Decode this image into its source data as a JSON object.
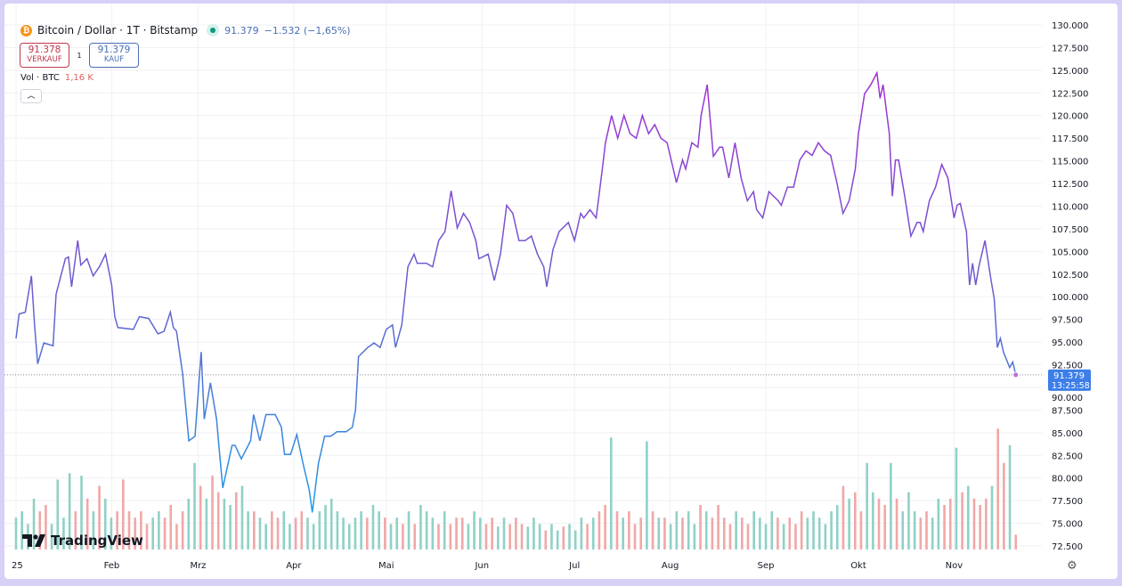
{
  "header": {
    "symbol_title": "Bitcoin / Dollar · 1T · Bitstamp",
    "icon": "bitcoin-icon",
    "market_status": "open",
    "last": "91.379",
    "change": "−1.532 (−1,65%)",
    "sell_price": "91.378",
    "sell_label": "VERKAUF",
    "spread": "1",
    "buy_price": "91.379",
    "buy_label": "KAUF",
    "vol_label": "Vol · BTC",
    "vol_value": "1,16 K",
    "collapse_icon": "chevron-up-icon"
  },
  "logo_text": "TradingView",
  "price_tag": {
    "price": "91.379",
    "countdown": "13:25:58"
  },
  "colors": {
    "line_low": "#1e9be6",
    "line_high": "#a22fd6",
    "vol_up": "#8fd1c6",
    "vol_down": "#f1a7a7",
    "price_tag": "#3d7ee8"
  },
  "chart_data": {
    "type": "line",
    "title": "Bitcoin / Dollar · 1T · Bitstamp",
    "ylim": [
      72500,
      130000
    ],
    "y_ticks": [
      "72.500",
      "75.000",
      "77.500",
      "80.000",
      "82.500",
      "85.000",
      "87.500",
      "90.000",
      "92.500",
      "95.000",
      "97.500",
      "100.000",
      "102.500",
      "105.000",
      "107.500",
      "110.000",
      "112.500",
      "115.000",
      "117.500",
      "120.000",
      "122.500",
      "125.000",
      "127.500",
      "130.000"
    ],
    "x_ticks": [
      {
        "label": "25",
        "date": "2025-01-01"
      },
      {
        "label": "Feb",
        "date": "2025-02-01"
      },
      {
        "label": "Mrz",
        "date": "2025-03-01"
      },
      {
        "label": "Apr",
        "date": "2025-04-01"
      },
      {
        "label": "Mai",
        "date": "2025-05-01"
      },
      {
        "label": "Jun",
        "date": "2025-06-01"
      },
      {
        "label": "Jul",
        "date": "2025-07-01"
      },
      {
        "label": "Aug",
        "date": "2025-08-01"
      },
      {
        "label": "Sep",
        "date": "2025-09-01"
      },
      {
        "label": "Okt",
        "date": "2025-10-01"
      },
      {
        "label": "Nov",
        "date": "2025-11-01"
      }
    ],
    "xlim": [
      "2025-01-01",
      "2025-11-28"
    ],
    "grid": true,
    "price": [
      [
        "2025-01-01",
        95400
      ],
      [
        "2025-01-02",
        98100
      ],
      [
        "2025-01-04",
        98300
      ],
      [
        "2025-01-06",
        102300
      ],
      [
        "2025-01-07",
        96900
      ],
      [
        "2025-01-08",
        92600
      ],
      [
        "2025-01-10",
        94900
      ],
      [
        "2025-01-13",
        94600
      ],
      [
        "2025-01-14",
        100300
      ],
      [
        "2025-01-17",
        104200
      ],
      [
        "2025-01-18",
        104400
      ],
      [
        "2025-01-19",
        101100
      ],
      [
        "2025-01-21",
        106200
      ],
      [
        "2025-01-22",
        103500
      ],
      [
        "2025-01-24",
        104200
      ],
      [
        "2025-01-26",
        102300
      ],
      [
        "2025-01-28",
        103300
      ],
      [
        "2025-01-30",
        104700
      ],
      [
        "2025-02-01",
        101300
      ],
      [
        "2025-02-02",
        97800
      ],
      [
        "2025-02-03",
        96600
      ],
      [
        "2025-02-08",
        96400
      ],
      [
        "2025-02-10",
        97800
      ],
      [
        "2025-02-13",
        97600
      ],
      [
        "2025-02-16",
        95900
      ],
      [
        "2025-02-18",
        96200
      ],
      [
        "2025-02-20",
        98300
      ],
      [
        "2025-02-21",
        96600
      ],
      [
        "2025-02-22",
        96200
      ],
      [
        "2025-02-24",
        91500
      ],
      [
        "2025-02-26",
        84100
      ],
      [
        "2025-02-28",
        84600
      ],
      [
        "2025-03-02",
        93900
      ],
      [
        "2025-03-03",
        86500
      ],
      [
        "2025-03-05",
        90500
      ],
      [
        "2025-03-07",
        86500
      ],
      [
        "2025-03-08",
        82600
      ],
      [
        "2025-03-09",
        78900
      ],
      [
        "2025-03-12",
        83600
      ],
      [
        "2025-03-13",
        83600
      ],
      [
        "2025-03-15",
        82100
      ],
      [
        "2025-03-18",
        84100
      ],
      [
        "2025-03-19",
        87000
      ],
      [
        "2025-03-21",
        84100
      ],
      [
        "2025-03-23",
        87000
      ],
      [
        "2025-03-26",
        87000
      ],
      [
        "2025-03-28",
        85600
      ],
      [
        "2025-03-29",
        82600
      ],
      [
        "2025-03-31",
        82600
      ],
      [
        "2025-04-02",
        84800
      ],
      [
        "2025-04-04",
        81600
      ],
      [
        "2025-04-06",
        78700
      ],
      [
        "2025-04-07",
        76200
      ],
      [
        "2025-04-09",
        81600
      ],
      [
        "2025-04-11",
        84600
      ],
      [
        "2025-04-13",
        84600
      ],
      [
        "2025-04-15",
        85100
      ],
      [
        "2025-04-18",
        85100
      ],
      [
        "2025-04-20",
        85600
      ],
      [
        "2025-04-21",
        87500
      ],
      [
        "2025-04-22",
        93400
      ],
      [
        "2025-04-25",
        94400
      ],
      [
        "2025-04-27",
        94900
      ],
      [
        "2025-04-29",
        94400
      ],
      [
        "2025-05-01",
        96400
      ],
      [
        "2025-05-03",
        96900
      ],
      [
        "2025-05-04",
        94400
      ],
      [
        "2025-05-06",
        96900
      ],
      [
        "2025-05-08",
        103300
      ],
      [
        "2025-05-10",
        104700
      ],
      [
        "2025-05-11",
        103700
      ],
      [
        "2025-05-14",
        103700
      ],
      [
        "2025-05-16",
        103300
      ],
      [
        "2025-05-18",
        106200
      ],
      [
        "2025-05-20",
        107200
      ],
      [
        "2025-05-22",
        111700
      ],
      [
        "2025-05-24",
        107600
      ],
      [
        "2025-05-26",
        109200
      ],
      [
        "2025-05-28",
        108200
      ],
      [
        "2025-05-30",
        106200
      ],
      [
        "2025-05-31",
        104200
      ],
      [
        "2025-06-03",
        104700
      ],
      [
        "2025-06-05",
        101800
      ],
      [
        "2025-06-07",
        104700
      ],
      [
        "2025-06-09",
        110100
      ],
      [
        "2025-06-11",
        109200
      ],
      [
        "2025-06-13",
        106200
      ],
      [
        "2025-06-15",
        106200
      ],
      [
        "2025-06-17",
        106700
      ],
      [
        "2025-06-19",
        104700
      ],
      [
        "2025-06-21",
        103300
      ],
      [
        "2025-06-22",
        101100
      ],
      [
        "2025-06-24",
        105200
      ],
      [
        "2025-06-26",
        107200
      ],
      [
        "2025-06-29",
        108200
      ],
      [
        "2025-07-01",
        106200
      ],
      [
        "2025-07-03",
        109200
      ],
      [
        "2025-07-04",
        108700
      ],
      [
        "2025-07-06",
        109600
      ],
      [
        "2025-07-08",
        108700
      ],
      [
        "2025-07-10",
        114100
      ],
      [
        "2025-07-11",
        117000
      ],
      [
        "2025-07-13",
        120000
      ],
      [
        "2025-07-15",
        117500
      ],
      [
        "2025-07-17",
        120000
      ],
      [
        "2025-07-19",
        118000
      ],
      [
        "2025-07-21",
        117500
      ],
      [
        "2025-07-23",
        120000
      ],
      [
        "2025-07-25",
        118000
      ],
      [
        "2025-07-27",
        119000
      ],
      [
        "2025-07-29",
        117500
      ],
      [
        "2025-07-31",
        117000
      ],
      [
        "2025-08-02",
        114100
      ],
      [
        "2025-08-03",
        112600
      ],
      [
        "2025-08-05",
        115100
      ],
      [
        "2025-08-06",
        114100
      ],
      [
        "2025-08-08",
        117000
      ],
      [
        "2025-08-10",
        116500
      ],
      [
        "2025-08-11",
        120000
      ],
      [
        "2025-08-13",
        123400
      ],
      [
        "2025-08-15",
        115500
      ],
      [
        "2025-08-17",
        116500
      ],
      [
        "2025-08-18",
        116500
      ],
      [
        "2025-08-20",
        113100
      ],
      [
        "2025-08-22",
        117000
      ],
      [
        "2025-08-24",
        113100
      ],
      [
        "2025-08-26",
        110600
      ],
      [
        "2025-08-28",
        111600
      ],
      [
        "2025-08-29",
        109600
      ],
      [
        "2025-08-31",
        108700
      ],
      [
        "2025-09-02",
        111600
      ],
      [
        "2025-09-05",
        110600
      ],
      [
        "2025-09-06",
        110100
      ],
      [
        "2025-09-08",
        112100
      ],
      [
        "2025-09-10",
        112100
      ],
      [
        "2025-09-12",
        115100
      ],
      [
        "2025-09-14",
        116100
      ],
      [
        "2025-09-16",
        115600
      ],
      [
        "2025-09-18",
        117000
      ],
      [
        "2025-09-20",
        116100
      ],
      [
        "2025-09-22",
        115600
      ],
      [
        "2025-09-24",
        112600
      ],
      [
        "2025-09-26",
        109200
      ],
      [
        "2025-09-28",
        110600
      ],
      [
        "2025-09-30",
        114100
      ],
      [
        "2025-10-01",
        118000
      ],
      [
        "2025-10-03",
        122400
      ],
      [
        "2025-10-05",
        123400
      ],
      [
        "2025-10-07",
        124700
      ],
      [
        "2025-10-08",
        121900
      ],
      [
        "2025-10-09",
        123400
      ],
      [
        "2025-10-11",
        118000
      ],
      [
        "2025-10-12",
        111100
      ],
      [
        "2025-10-13",
        115100
      ],
      [
        "2025-10-14",
        115100
      ],
      [
        "2025-10-16",
        111100
      ],
      [
        "2025-10-18",
        106700
      ],
      [
        "2025-10-20",
        108200
      ],
      [
        "2025-10-21",
        108200
      ],
      [
        "2025-10-22",
        107200
      ],
      [
        "2025-10-24",
        110600
      ],
      [
        "2025-10-26",
        112100
      ],
      [
        "2025-10-28",
        114600
      ],
      [
        "2025-10-30",
        113100
      ],
      [
        "2025-11-01",
        108700
      ],
      [
        "2025-11-02",
        110100
      ],
      [
        "2025-11-03",
        110300
      ],
      [
        "2025-11-05",
        107200
      ],
      [
        "2025-11-06",
        101300
      ],
      [
        "2025-11-07",
        103700
      ],
      [
        "2025-11-08",
        101300
      ],
      [
        "2025-11-09",
        103300
      ],
      [
        "2025-11-11",
        106200
      ],
      [
        "2025-11-13",
        101800
      ],
      [
        "2025-11-14",
        99800
      ],
      [
        "2025-11-15",
        94400
      ],
      [
        "2025-11-16",
        95400
      ],
      [
        "2025-11-17",
        93900
      ],
      [
        "2025-11-19",
        92200
      ],
      [
        "2025-11-20",
        92800
      ],
      [
        "2025-11-21",
        91379
      ]
    ],
    "volume_unit": "K BTC",
    "volume": [
      2.5,
      3,
      2,
      4,
      3,
      3.5,
      2,
      5.5,
      2.5,
      6,
      3,
      5.8,
      4,
      3,
      5,
      4,
      2.5,
      3,
      5.5,
      3,
      2.5,
      3,
      2,
      2.5,
      3,
      2.5,
      3.5,
      2,
      3,
      4,
      6.8,
      5,
      4,
      5.8,
      4.5,
      4,
      3.5,
      4.5,
      5,
      3,
      3,
      2.5,
      2,
      3,
      2.5,
      3,
      2,
      2.5,
      3,
      2.5,
      2,
      3,
      3.5,
      4,
      3,
      2.5,
      2,
      2.5,
      3,
      2.5,
      3.5,
      3,
      2.5,
      2,
      2.5,
      2,
      3,
      2,
      3.5,
      3,
      2.5,
      2,
      3,
      2,
      2.5,
      2.5,
      2,
      3,
      2.5,
      2,
      2.5,
      1.8,
      2.5,
      2,
      2.5,
      2,
      1.8,
      2.5,
      2,
      1.5,
      2,
      1.5,
      1.8,
      2,
      1.5,
      2.5,
      2,
      2.5,
      3,
      3.5,
      8.8,
      3,
      2.5,
      3,
      2,
      2.5,
      8.5,
      3,
      2.5,
      2.5,
      2,
      3,
      2.5,
      3,
      2,
      3.5,
      3,
      2.5,
      3.5,
      2.5,
      2,
      3,
      2.5,
      2,
      3,
      2.5,
      2,
      3,
      2.5,
      2,
      2.5,
      2,
      3,
      2.5,
      3,
      2.5,
      2,
      3,
      3.5,
      5,
      4,
      4.5,
      3,
      6.8,
      4.5,
      4,
      3.5,
      6.8,
      4,
      3,
      4.5,
      3,
      2.5,
      3,
      2.5,
      4,
      3.5,
      4,
      8,
      4.5,
      5,
      4,
      3.5,
      4,
      5,
      9.5,
      6.8,
      8.2,
      1.16
    ]
  }
}
